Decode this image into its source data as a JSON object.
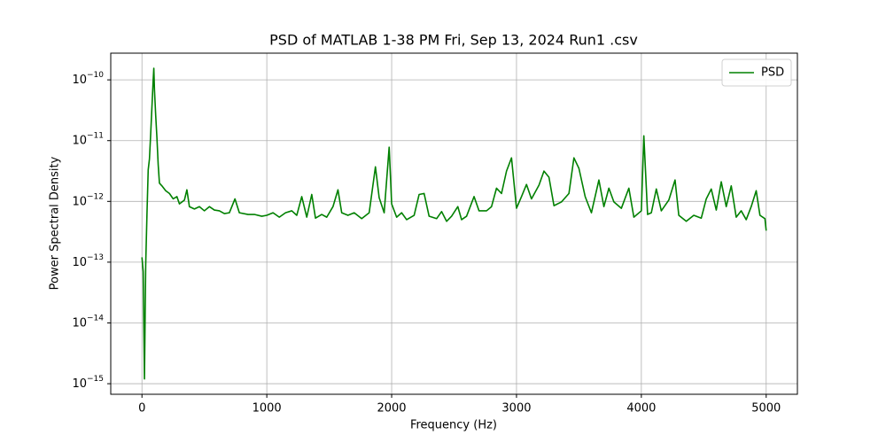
{
  "chart_data": {
    "type": "line",
    "title": "PSD of MATLAB 1-38 PM Fri, Sep 13, 2024 Run1 .csv",
    "xlabel": "Frequency (Hz)",
    "ylabel": "Power Spectral Density",
    "log_y": true,
    "grid": true,
    "legend": "upper right",
    "xlim": [
      -250,
      5250
    ],
    "xticks": [
      0,
      1000,
      2000,
      3000,
      4000,
      5000
    ],
    "ylim": [
      6.7e-16,
      2.75e-10
    ],
    "yticks": [
      {
        "value": 1e-15,
        "label": "10−15"
      },
      {
        "value": 1e-14,
        "label": "10−14"
      },
      {
        "value": 1e-13,
        "label": "10−13"
      },
      {
        "value": 1e-12,
        "label": "10−12"
      },
      {
        "value": 1e-11,
        "label": "10−11"
      },
      {
        "value": 1e-10,
        "label": "10−10"
      }
    ],
    "x": [
      0,
      10,
      20,
      30,
      40,
      50,
      60,
      70,
      80,
      90,
      95,
      100,
      110,
      120,
      130,
      140,
      160,
      190,
      220,
      250,
      280,
      300,
      340,
      360,
      380,
      420,
      460,
      500,
      540,
      580,
      620,
      660,
      700,
      745,
      780,
      850,
      900,
      960,
      1000,
      1050,
      1100,
      1150,
      1200,
      1240,
      1280,
      1320,
      1360,
      1390,
      1440,
      1480,
      1530,
      1570,
      1600,
      1650,
      1700,
      1760,
      1820,
      1870,
      1900,
      1940,
      1980,
      2000,
      2040,
      2080,
      2120,
      2180,
      2220,
      2260,
      2300,
      2360,
      2400,
      2440,
      2480,
      2530,
      2560,
      2600,
      2660,
      2700,
      2760,
      2800,
      2840,
      2880,
      2920,
      2960,
      3000,
      3040,
      3080,
      3120,
      3180,
      3220,
      3260,
      3300,
      3360,
      3420,
      3460,
      3500,
      3550,
      3600,
      3660,
      3700,
      3740,
      3780,
      3840,
      3900,
      3940,
      4000,
      4020,
      4050,
      4080,
      4120,
      4160,
      4220,
      4270,
      4300,
      4360,
      4420,
      4480,
      4520,
      4560,
      4600,
      4640,
      4680,
      4720,
      4760,
      4800,
      4840,
      4880,
      4920,
      4950,
      4990,
      5000
    ],
    "series": [
      {
        "name": "PSD",
        "color": "#008000",
        "values": [
          1.2e-13,
          7e-14,
          1.2e-15,
          9e-14,
          6e-13,
          3.3e-12,
          5e-12,
          1.3e-11,
          3.6e-11,
          1e-10,
          1.55e-10,
          7e-11,
          2.6e-11,
          1.1e-11,
          4e-12,
          2e-12,
          1.8e-12,
          1.5e-12,
          1.35e-12,
          1.1e-12,
          1.2e-12,
          9.1e-13,
          1.05e-12,
          1.55e-12,
          8.2e-13,
          7.5e-13,
          8.2e-13,
          7e-13,
          8.2e-13,
          7.2e-13,
          7e-13,
          6.3e-13,
          6.5e-13,
          1.1e-12,
          6.5e-13,
          6.1e-13,
          6.1e-13,
          5.7e-13,
          5.9e-13,
          6.5e-13,
          5.5e-13,
          6.5e-13,
          7e-13,
          5.9e-13,
          1.2e-12,
          5.5e-13,
          1.3e-12,
          5.3e-13,
          6.1e-13,
          5.5e-13,
          8.2e-13,
          1.55e-12,
          6.5e-13,
          5.9e-13,
          6.5e-13,
          5.2e-13,
          6.5e-13,
          3.7e-12,
          1.15e-12,
          6.5e-13,
          7.8e-12,
          9.1e-13,
          5.5e-13,
          6.5e-13,
          5e-13,
          5.9e-13,
          1.3e-12,
          1.35e-12,
          5.7e-13,
          5.2e-13,
          6.8e-13,
          4.7e-13,
          5.7e-13,
          8.2e-13,
          5e-13,
          5.7e-13,
          1.2e-12,
          7e-13,
          7e-13,
          8.2e-13,
          1.65e-12,
          1.35e-12,
          3.15e-12,
          5.2e-12,
          7.7e-13,
          1.2e-12,
          1.9e-12,
          1.1e-12,
          1.85e-12,
          3.15e-12,
          2.5e-12,
          8.5e-13,
          9.8e-13,
          1.35e-12,
          5.2e-12,
          3.5e-12,
          1.2e-12,
          6.5e-13,
          2.25e-12,
          8.2e-13,
          1.65e-12,
          9.8e-13,
          7.7e-13,
          1.65e-12,
          5.5e-13,
          7e-13,
          1.2e-11,
          6.1e-13,
          6.5e-13,
          1.6e-12,
          7e-13,
          1.05e-12,
          2.25e-12,
          5.9e-13,
          4.7e-13,
          5.9e-13,
          5.3e-13,
          1.1e-12,
          1.6e-12,
          7.2e-13,
          2.1e-12,
          8.2e-13,
          1.8e-12,
          5.5e-13,
          7e-13,
          5e-13,
          8.2e-13,
          1.5e-12,
          5.9e-13,
          5.2e-13,
          3.3e-13
        ]
      }
    ]
  }
}
